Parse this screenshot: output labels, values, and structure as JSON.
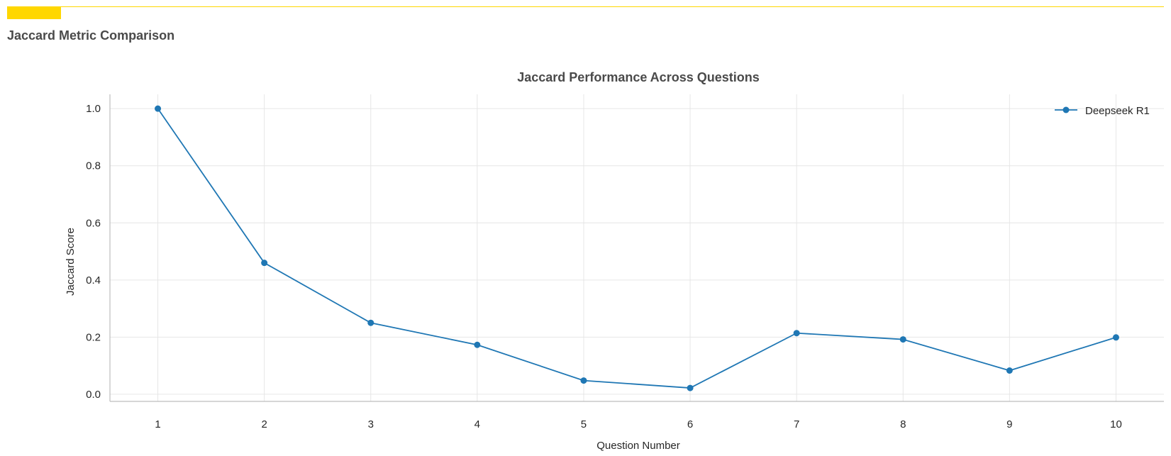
{
  "header": {
    "title": "Jaccard Metric Comparison",
    "accent_color": "#FFD700"
  },
  "chart_data": {
    "type": "line",
    "title": "Jaccard Performance Across Questions",
    "xlabel": "Question Number",
    "ylabel": "Jaccard Score",
    "x": [
      1,
      2,
      3,
      4,
      5,
      6,
      7,
      8,
      9,
      10
    ],
    "x_tick_labels": [
      "1",
      "2",
      "3",
      "4",
      "5",
      "6",
      "7",
      "8",
      "9",
      "10"
    ],
    "y_ticks": [
      0.0,
      0.2,
      0.4,
      0.6,
      0.8,
      1.0
    ],
    "y_tick_labels": [
      "0.0",
      "0.2",
      "0.4",
      "0.6",
      "0.8",
      "1.0"
    ],
    "xlim": [
      0.55,
      10.45
    ],
    "ylim": [
      -0.025,
      1.05
    ],
    "grid": true,
    "legend_position": "top-right",
    "series": [
      {
        "name": "Deepseek R1",
        "color": "#1f77b4",
        "marker": "circle",
        "values": [
          1.0,
          0.46,
          0.25,
          0.173,
          0.048,
          0.022,
          0.214,
          0.192,
          0.083,
          0.199
        ]
      }
    ]
  }
}
